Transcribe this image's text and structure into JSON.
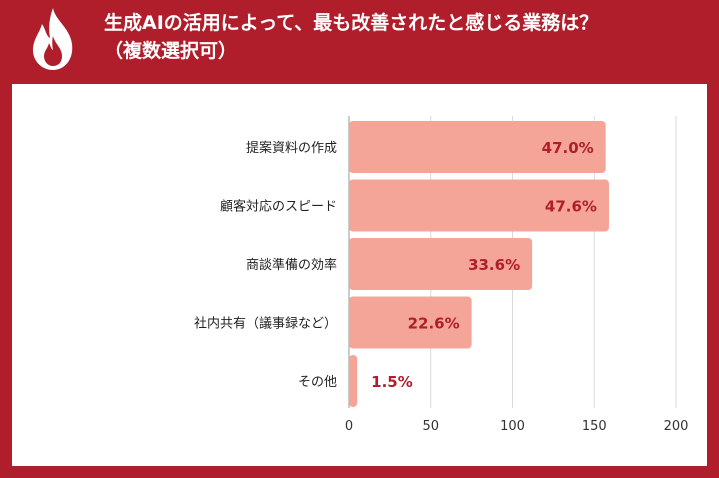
{
  "title_line1": "生成AIの活用によって、最も改善されたと感じる業務は？",
  "title_line2": "（複数選択可）",
  "icon": "flame-icon",
  "colors": {
    "background": "#b01e2b",
    "bar": "#f5a597",
    "value_label": "#b01e2b"
  },
  "chart_data": {
    "type": "bar",
    "orientation": "horizontal",
    "categories": [
      "提案資料の作成",
      "顧客対応のスピード",
      "商談準備の効率",
      "社内共有（議事録など）",
      "その他"
    ],
    "values": [
      157,
      159,
      112,
      75,
      5
    ],
    "data_labels": [
      "47.0%",
      "47.6%",
      "33.6%",
      "22.6%",
      "1.5%"
    ],
    "xlim": [
      0,
      200
    ],
    "xticks": [
      "0",
      "50",
      "100",
      "150",
      "200"
    ],
    "grid": true,
    "legend": "none"
  }
}
